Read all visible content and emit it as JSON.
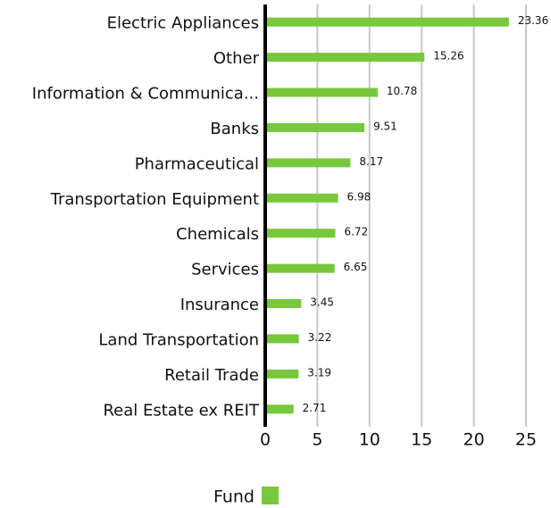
{
  "chart_data": {
    "type": "hbar",
    "categories": [
      "Electric Appliances",
      "Other",
      "Information & Communica...",
      "Banks",
      "Pharmaceutical",
      "Transportation Equipment",
      "Chemicals",
      "Services",
      "Insurance",
      "Land Transportation",
      "Retail Trade",
      "Real Estate ex REIT"
    ],
    "series": [
      {
        "name": "Fund",
        "color": "#77c83c",
        "values": [
          23.36,
          15.26,
          10.78,
          9.51,
          8.17,
          6.98,
          6.72,
          6.65,
          3.45,
          3.22,
          3.19,
          2.71
        ]
      }
    ],
    "xlim": [
      0,
      25
    ],
    "xticks": [
      0,
      5,
      10,
      15,
      20,
      25
    ],
    "grid": true,
    "legend": "bottom"
  }
}
